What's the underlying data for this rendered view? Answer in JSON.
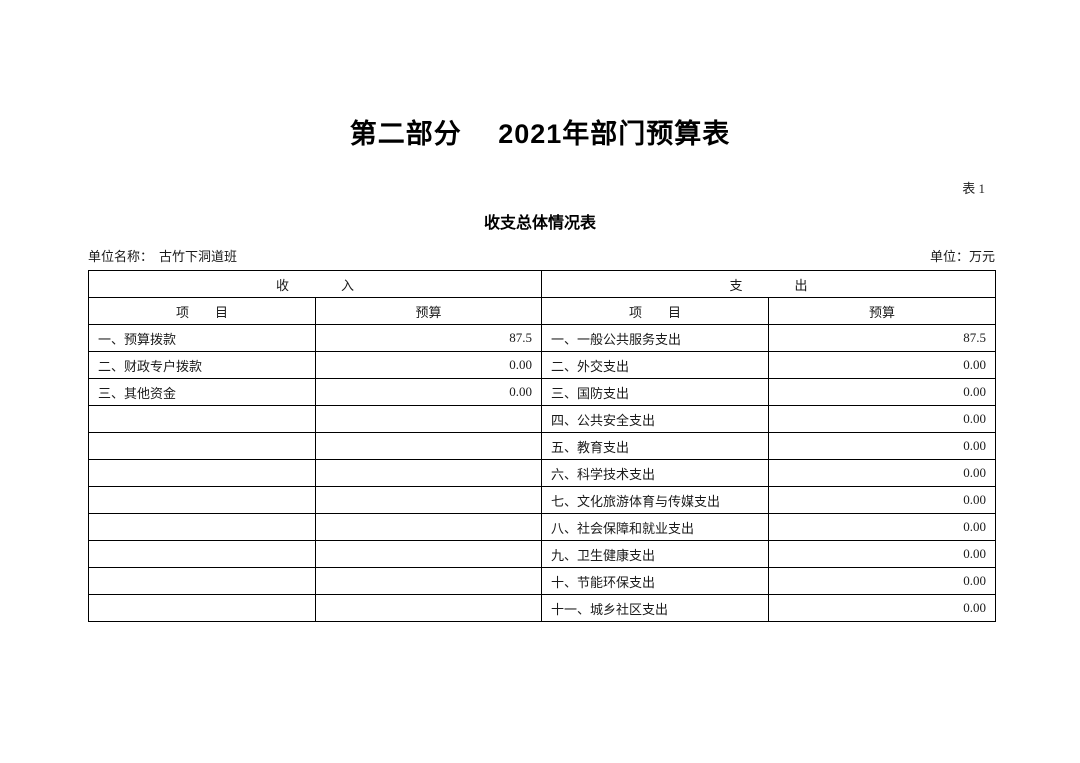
{
  "page": {
    "title": "第二部分　 2021年部门预算表",
    "table_label": "表 1",
    "subtitle": "收支总体情况表",
    "unit_name_label": "单位名称：",
    "unit_name_value": "古竹下洞道班",
    "unit_label": "单位：万元"
  },
  "table": {
    "income_section_header": "收　　　　入",
    "expense_section_header": "支　　　　出",
    "item_header_income": "项　　目",
    "budget_header_income": "预算",
    "item_header_expense": "项　　目",
    "budget_header_expense": "预算",
    "rows": [
      {
        "income_item": "一、预算拨款",
        "income_budget": "87.5",
        "expense_item": "一、一般公共服务支出",
        "expense_budget": "87.5"
      },
      {
        "income_item": "二、财政专户拨款",
        "income_budget": "0.00",
        "expense_item": "二、外交支出",
        "expense_budget": "0.00"
      },
      {
        "income_item": "三、其他资金",
        "income_budget": "0.00",
        "expense_item": "三、国防支出",
        "expense_budget": "0.00"
      },
      {
        "income_item": "",
        "income_budget": "",
        "expense_item": "四、公共安全支出",
        "expense_budget": "0.00"
      },
      {
        "income_item": "",
        "income_budget": "",
        "expense_item": "五、教育支出",
        "expense_budget": "0.00"
      },
      {
        "income_item": "",
        "income_budget": "",
        "expense_item": "六、科学技术支出",
        "expense_budget": "0.00"
      },
      {
        "income_item": "",
        "income_budget": "",
        "expense_item": "七、文化旅游体育与传媒支出",
        "expense_budget": "0.00"
      },
      {
        "income_item": "",
        "income_budget": "",
        "expense_item": "八、社会保障和就业支出",
        "expense_budget": "0.00"
      },
      {
        "income_item": "",
        "income_budget": "",
        "expense_item": "九、卫生健康支出",
        "expense_budget": "0.00"
      },
      {
        "income_item": "",
        "income_budget": "",
        "expense_item": "十、节能环保支出",
        "expense_budget": "0.00"
      },
      {
        "income_item": "",
        "income_budget": "",
        "expense_item": "十一、城乡社区支出",
        "expense_budget": "0.00"
      }
    ]
  }
}
